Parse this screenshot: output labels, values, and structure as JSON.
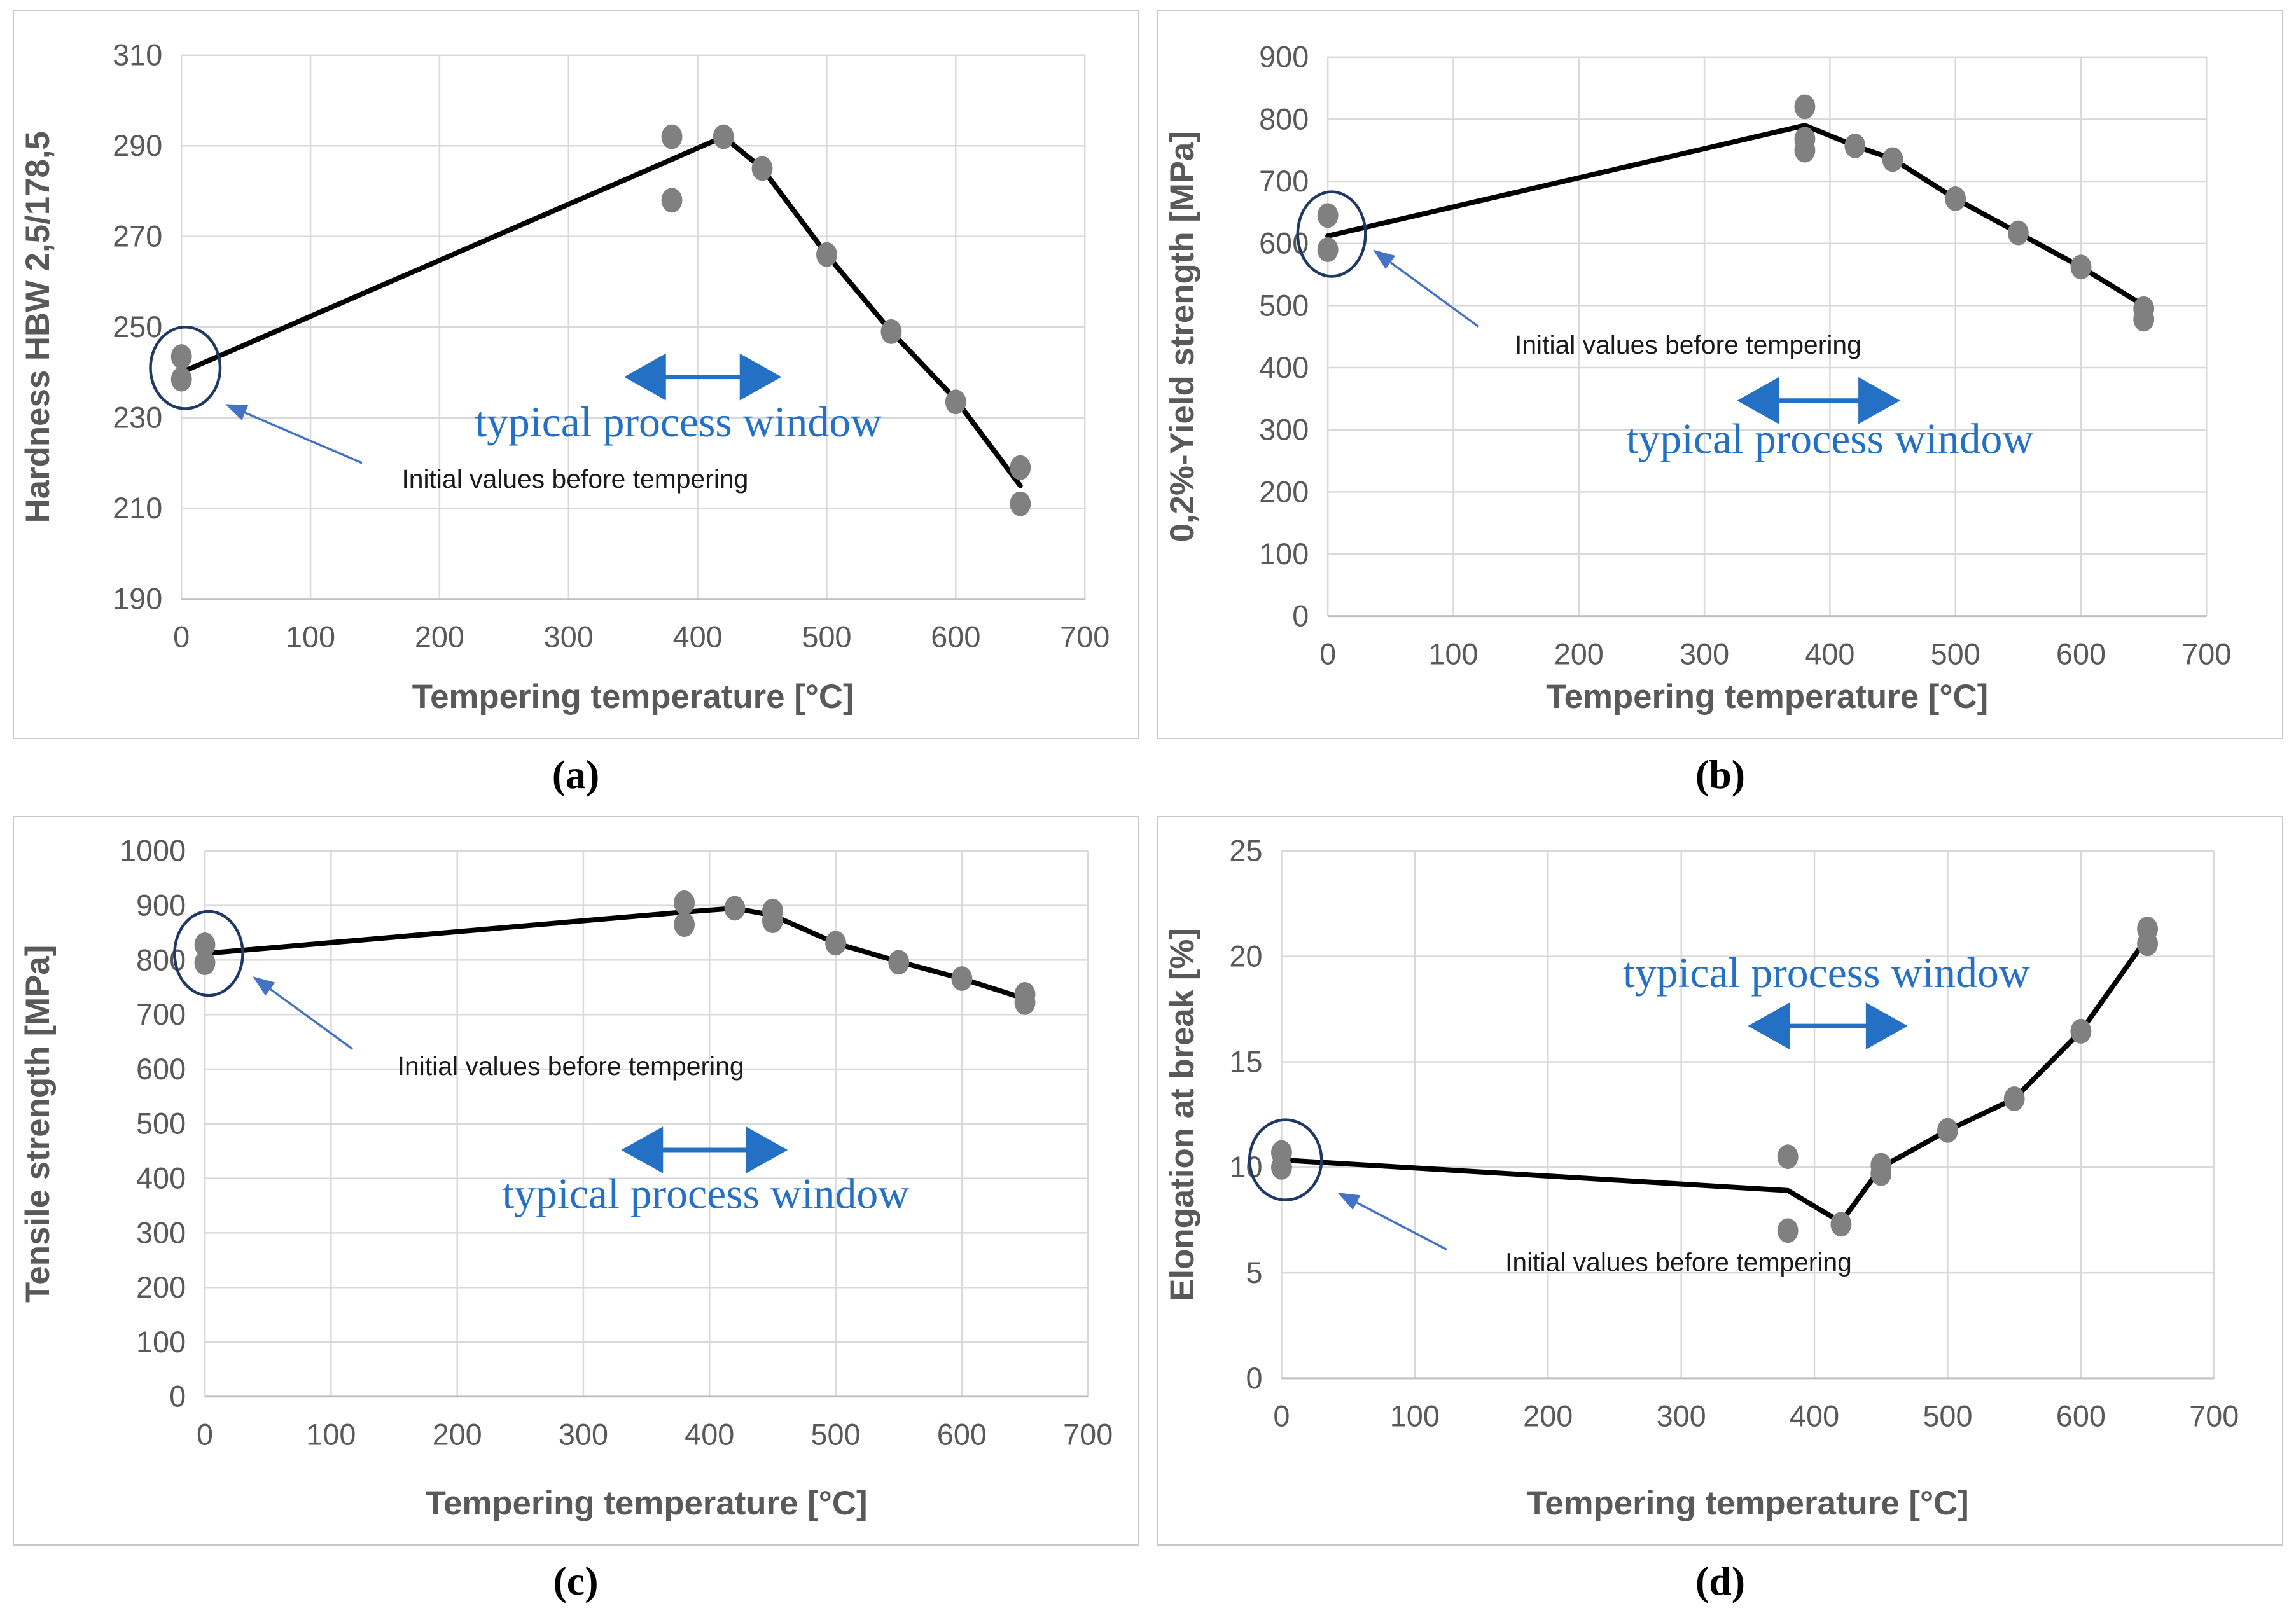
{
  "colors": {
    "grid": "#d9d9d9",
    "axis_line": "#bfbfbf",
    "axis_text": "#595959",
    "series_line": "#000000",
    "marker_gray": "#808080",
    "accent_blue": "#2470c4",
    "annotation_arrow_blue": "#4472c4",
    "circle_navy": "#1f3864",
    "annotation_text": "#1a1a1a",
    "panel_border": "#c9c9c9"
  },
  "figure": {
    "panel_labels": [
      "(a)",
      "(b)",
      "(c)",
      "(d)"
    ]
  },
  "annotations_text": {
    "process_window": "typical process window",
    "initial_values": "Initial values before tempering"
  },
  "chart_data": [
    {
      "panel": "a",
      "type": "line+scatter",
      "title": "",
      "xlabel": "Tempering temperature [°C]",
      "ylabel": "Hardness HBW 2,5/178,5",
      "xlim": [
        0,
        700
      ],
      "ylim": [
        190,
        310
      ],
      "xticks": [
        0,
        100,
        200,
        300,
        400,
        500,
        600,
        700
      ],
      "yticks": [
        190,
        210,
        230,
        250,
        270,
        290,
        310
      ],
      "grid": true,
      "legend": "none",
      "scatter": [
        [
          0,
          243.5
        ],
        [
          0,
          238.5
        ],
        [
          380,
          292
        ],
        [
          380,
          278
        ],
        [
          420,
          292
        ],
        [
          450,
          285
        ],
        [
          500,
          266
        ],
        [
          550,
          249
        ],
        [
          600,
          233.5
        ],
        [
          650,
          219
        ],
        [
          650,
          211
        ]
      ],
      "line": [
        [
          0,
          240
        ],
        [
          380,
          287
        ],
        [
          420,
          292
        ],
        [
          450,
          285
        ],
        [
          500,
          266
        ],
        [
          550,
          249
        ],
        [
          600,
          234
        ],
        [
          650,
          215
        ]
      ],
      "annotations": {
        "circle": {
          "cx": 3,
          "cy": 241,
          "rx": 27,
          "ry": 9
        },
        "initial_values_text": {
          "x": 305,
          "y": 216.5
        },
        "initial_values_arrow": {
          "tail": [
            140,
            220
          ],
          "tip": [
            34,
            233
          ]
        },
        "process_window_arrow": {
          "x1": 343,
          "x2": 465,
          "y": 239
        },
        "process_window_text": {
          "x": 385,
          "y": 229
        }
      }
    },
    {
      "panel": "b",
      "type": "line+scatter",
      "title": "",
      "xlabel": "Tempering temperature [°C]",
      "ylabel": "0,2%-Yield  strength  [MPa]",
      "xlim": [
        0,
        700
      ],
      "ylim": [
        0,
        900
      ],
      "xticks": [
        0,
        100,
        200,
        300,
        400,
        500,
        600,
        700
      ],
      "yticks": [
        0,
        100,
        200,
        300,
        400,
        500,
        600,
        700,
        800,
        900
      ],
      "grid": true,
      "legend": "none",
      "scatter": [
        [
          0,
          645
        ],
        [
          0,
          590
        ],
        [
          380,
          820
        ],
        [
          380,
          768
        ],
        [
          380,
          750
        ],
        [
          420,
          757
        ],
        [
          450,
          735
        ],
        [
          500,
          672
        ],
        [
          550,
          617
        ],
        [
          600,
          562
        ],
        [
          650,
          495
        ],
        [
          650,
          478
        ]
      ],
      "line": [
        [
          0,
          612
        ],
        [
          380,
          790
        ],
        [
          420,
          757
        ],
        [
          450,
          736
        ],
        [
          500,
          672
        ],
        [
          550,
          617
        ],
        [
          600,
          562
        ],
        [
          650,
          500
        ]
      ],
      "annotations": {
        "circle": {
          "cx": 3,
          "cy": 615,
          "rx": 27,
          "ry": 68
        },
        "initial_values_text": {
          "x": 287,
          "y": 437
        },
        "initial_values_arrow": {
          "tail": [
            120,
            466
          ],
          "tip": [
            36,
            590
          ]
        },
        "process_window_arrow": {
          "x1": 326,
          "x2": 456,
          "y": 347
        },
        "process_window_text": {
          "x": 400,
          "y": 285
        }
      }
    },
    {
      "panel": "c",
      "type": "line+scatter",
      "title": "",
      "xlabel": "Tempering temperature [°C]",
      "ylabel": "Tensile strength [MPa]",
      "xlim": [
        0,
        700
      ],
      "ylim": [
        0,
        1000
      ],
      "xticks": [
        0,
        100,
        200,
        300,
        400,
        500,
        600,
        700
      ],
      "yticks": [
        0,
        100,
        200,
        300,
        400,
        500,
        600,
        700,
        800,
        900,
        1000
      ],
      "grid": true,
      "legend": "none",
      "scatter": [
        [
          0,
          828
        ],
        [
          0,
          795
        ],
        [
          380,
          905
        ],
        [
          380,
          865
        ],
        [
          420,
          895
        ],
        [
          450,
          890
        ],
        [
          450,
          872
        ],
        [
          500,
          831
        ],
        [
          550,
          796
        ],
        [
          600,
          766
        ],
        [
          650,
          737
        ],
        [
          650,
          722
        ]
      ],
      "line": [
        [
          0,
          812
        ],
        [
          380,
          888
        ],
        [
          420,
          895
        ],
        [
          450,
          882
        ],
        [
          500,
          831
        ],
        [
          550,
          797
        ],
        [
          600,
          766
        ],
        [
          650,
          729
        ]
      ],
      "annotations": {
        "circle": {
          "cx": 3,
          "cy": 812,
          "rx": 27,
          "ry": 77
        },
        "initial_values_text": {
          "x": 290,
          "y": 606
        },
        "initial_values_arrow": {
          "tail": [
            117,
            637
          ],
          "tip": [
            38,
            770
          ]
        },
        "process_window_arrow": {
          "x1": 330,
          "x2": 462,
          "y": 452
        },
        "process_window_text": {
          "x": 397,
          "y": 371
        }
      }
    },
    {
      "panel": "d",
      "type": "line+scatter",
      "title": "",
      "xlabel": "Tempering temperature [°C]",
      "ylabel": "Elongation at break [%]",
      "xlim": [
        0,
        700
      ],
      "ylim": [
        0,
        25
      ],
      "xticks": [
        0,
        100,
        200,
        300,
        400,
        500,
        600,
        700
      ],
      "yticks": [
        0,
        5,
        10,
        15,
        20,
        25
      ],
      "grid": true,
      "legend": "none",
      "scatter": [
        [
          0,
          10.7
        ],
        [
          0,
          10.0
        ],
        [
          380,
          10.5
        ],
        [
          380,
          7.0
        ],
        [
          420,
          7.3
        ],
        [
          450,
          10.1
        ],
        [
          450,
          9.7
        ],
        [
          500,
          11.75
        ],
        [
          550,
          13.25
        ],
        [
          600,
          16.45
        ],
        [
          650,
          21.3
        ],
        [
          650,
          20.6
        ]
      ],
      "line": [
        [
          0,
          10.35
        ],
        [
          380,
          8.9
        ],
        [
          420,
          7.4
        ],
        [
          450,
          10.0
        ],
        [
          500,
          11.75
        ],
        [
          550,
          13.25
        ],
        [
          600,
          16.45
        ],
        [
          650,
          20.9
        ]
      ],
      "annotations": {
        "circle": {
          "cx": 3,
          "cy": 10.35,
          "rx": 27,
          "ry": 1.9
        },
        "initial_values_text": {
          "x": 298,
          "y": 5.5
        },
        "initial_values_arrow": {
          "tail": [
            124,
            6.1
          ],
          "tip": [
            42,
            8.8
          ]
        },
        "process_window_arrow": {
          "x1": 350,
          "x2": 470,
          "y": 16.7
        },
        "process_window_text": {
          "x": 409,
          "y": 19.2
        }
      }
    }
  ]
}
